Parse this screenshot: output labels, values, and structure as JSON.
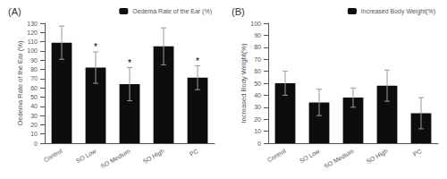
{
  "chart_data": [
    {
      "type": "bar",
      "title": "(A)",
      "ylabel": "Oedema Rate of the Ear (%)",
      "categories": [
        "Control",
        "SO Low",
        "SO Medium",
        "SO High",
        "PC"
      ],
      "series": [
        {
          "name": "Oedema Rate of the Ear (%)",
          "color": "#0d0d0d",
          "values": [
            109,
            82,
            64,
            105,
            71
          ],
          "errors": [
            18,
            17,
            18,
            20,
            13
          ],
          "error_color": "#999999"
        }
      ],
      "annotations": [
        {
          "text": "*",
          "x": "SO Low"
        },
        {
          "text": "*",
          "x": "SO Medium"
        },
        {
          "text": "*",
          "x": "PC"
        }
      ],
      "ylim": [
        0,
        130
      ],
      "yticks": [
        0,
        10,
        20,
        30,
        40,
        50,
        60,
        70,
        80,
        90,
        100,
        110,
        120,
        130
      ],
      "legend": "upper right",
      "grid": false
    },
    {
      "type": "bar",
      "title": "(B)",
      "ylabel": "Increased Body Weight(%)",
      "categories": [
        "Control",
        "SO Low",
        "SO Medium",
        "SO High",
        "PC"
      ],
      "series": [
        {
          "name": "Increased Body Weight(%)",
          "color": "#0d0d0d",
          "values": [
            50,
            34,
            38,
            48,
            25
          ],
          "errors": [
            10,
            11,
            8,
            13,
            13
          ],
          "error_color": "#999999"
        }
      ],
      "ylim": [
        0,
        100
      ],
      "yticks": [
        0,
        10,
        20,
        30,
        40,
        50,
        60,
        70,
        80,
        90,
        100
      ],
      "legend": "upper right",
      "grid": false
    }
  ]
}
